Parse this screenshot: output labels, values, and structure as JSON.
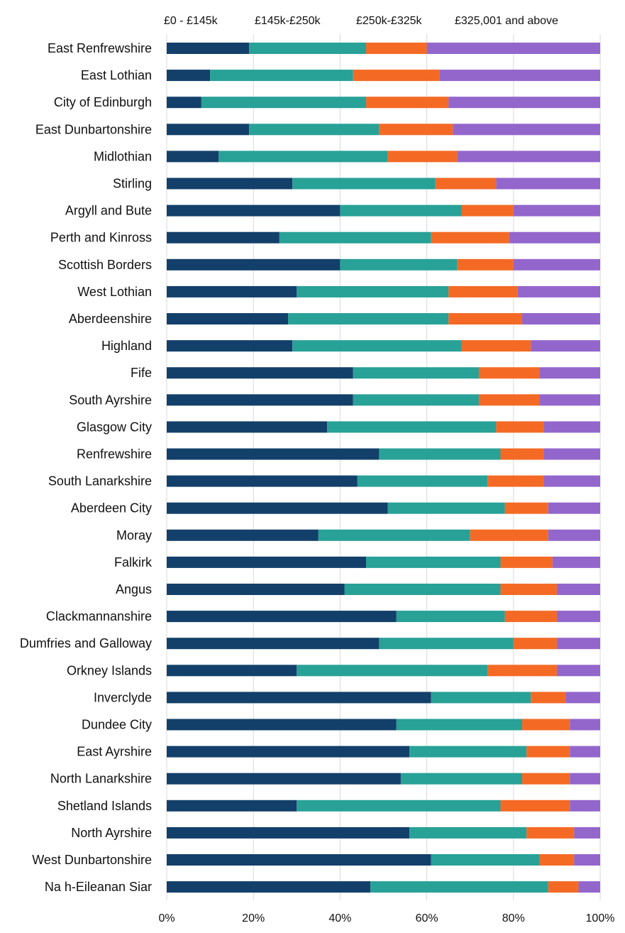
{
  "chart_data": {
    "type": "bar",
    "orientation": "horizontal",
    "stacked": "percent",
    "categories": [
      "East Renfrewshire",
      "East Lothian",
      "City of Edinburgh",
      "East Dunbartonshire",
      "Midlothian",
      "Stirling",
      "Argyll and Bute",
      "Perth and Kinross",
      "Scottish Borders",
      "West Lothian",
      "Aberdeenshire",
      "Highland",
      "Fife",
      "South Ayrshire",
      "Glasgow City",
      "Renfrewshire",
      "South Lanarkshire",
      "Aberdeen City",
      "Moray",
      "Falkirk",
      "Angus",
      "Clackmannanshire",
      "Dumfries and Galloway",
      "Orkney Islands",
      "Inverclyde",
      "Dundee City",
      "East Ayrshire",
      "North Lanarkshire",
      "Shetland Islands",
      "North Ayrshire",
      "West Dunbartonshire",
      "Na h-Eileanan Siar"
    ],
    "series": [
      {
        "name": "£0 - £145k",
        "color": "#13406a",
        "values": [
          19,
          10,
          8,
          19,
          12,
          29,
          40,
          26,
          40,
          30,
          28,
          29,
          43,
          43,
          37,
          49,
          44,
          51,
          35,
          46,
          41,
          53,
          49,
          30,
          61,
          53,
          56,
          54,
          30,
          56,
          61,
          47
        ]
      },
      {
        "name": "£145k-£250k",
        "color": "#28a197",
        "values": [
          27,
          33,
          38,
          30,
          39,
          33,
          28,
          35,
          27,
          35,
          37,
          39,
          29,
          29,
          39,
          28,
          30,
          27,
          35,
          31,
          36,
          25,
          31,
          44,
          23,
          29,
          27,
          28,
          47,
          27,
          25,
          41
        ]
      },
      {
        "name": "£250k-£325k",
        "color": "#f46a25",
        "values": [
          14,
          20,
          19,
          17,
          16,
          14,
          12,
          18,
          13,
          16,
          17,
          16,
          14,
          14,
          11,
          10,
          13,
          10,
          18,
          12,
          13,
          12,
          10,
          16,
          8,
          11,
          10,
          11,
          16,
          11,
          8,
          7
        ]
      },
      {
        "name": "£325,001 and above",
        "color": "#9366cc",
        "values": [
          40,
          37,
          35,
          34,
          33,
          24,
          20,
          21,
          20,
          19,
          18,
          16,
          14,
          14,
          13,
          13,
          13,
          12,
          12,
          11,
          10,
          10,
          10,
          10,
          8,
          7,
          7,
          7,
          7,
          6,
          6,
          5
        ]
      }
    ],
    "x_ticks": [
      "0%",
      "20%",
      "40%",
      "60%",
      "80%",
      "100%"
    ],
    "xlim": [
      0,
      100
    ],
    "grid": true,
    "legend_position": "top",
    "title": "",
    "xlabel": "",
    "ylabel": ""
  }
}
